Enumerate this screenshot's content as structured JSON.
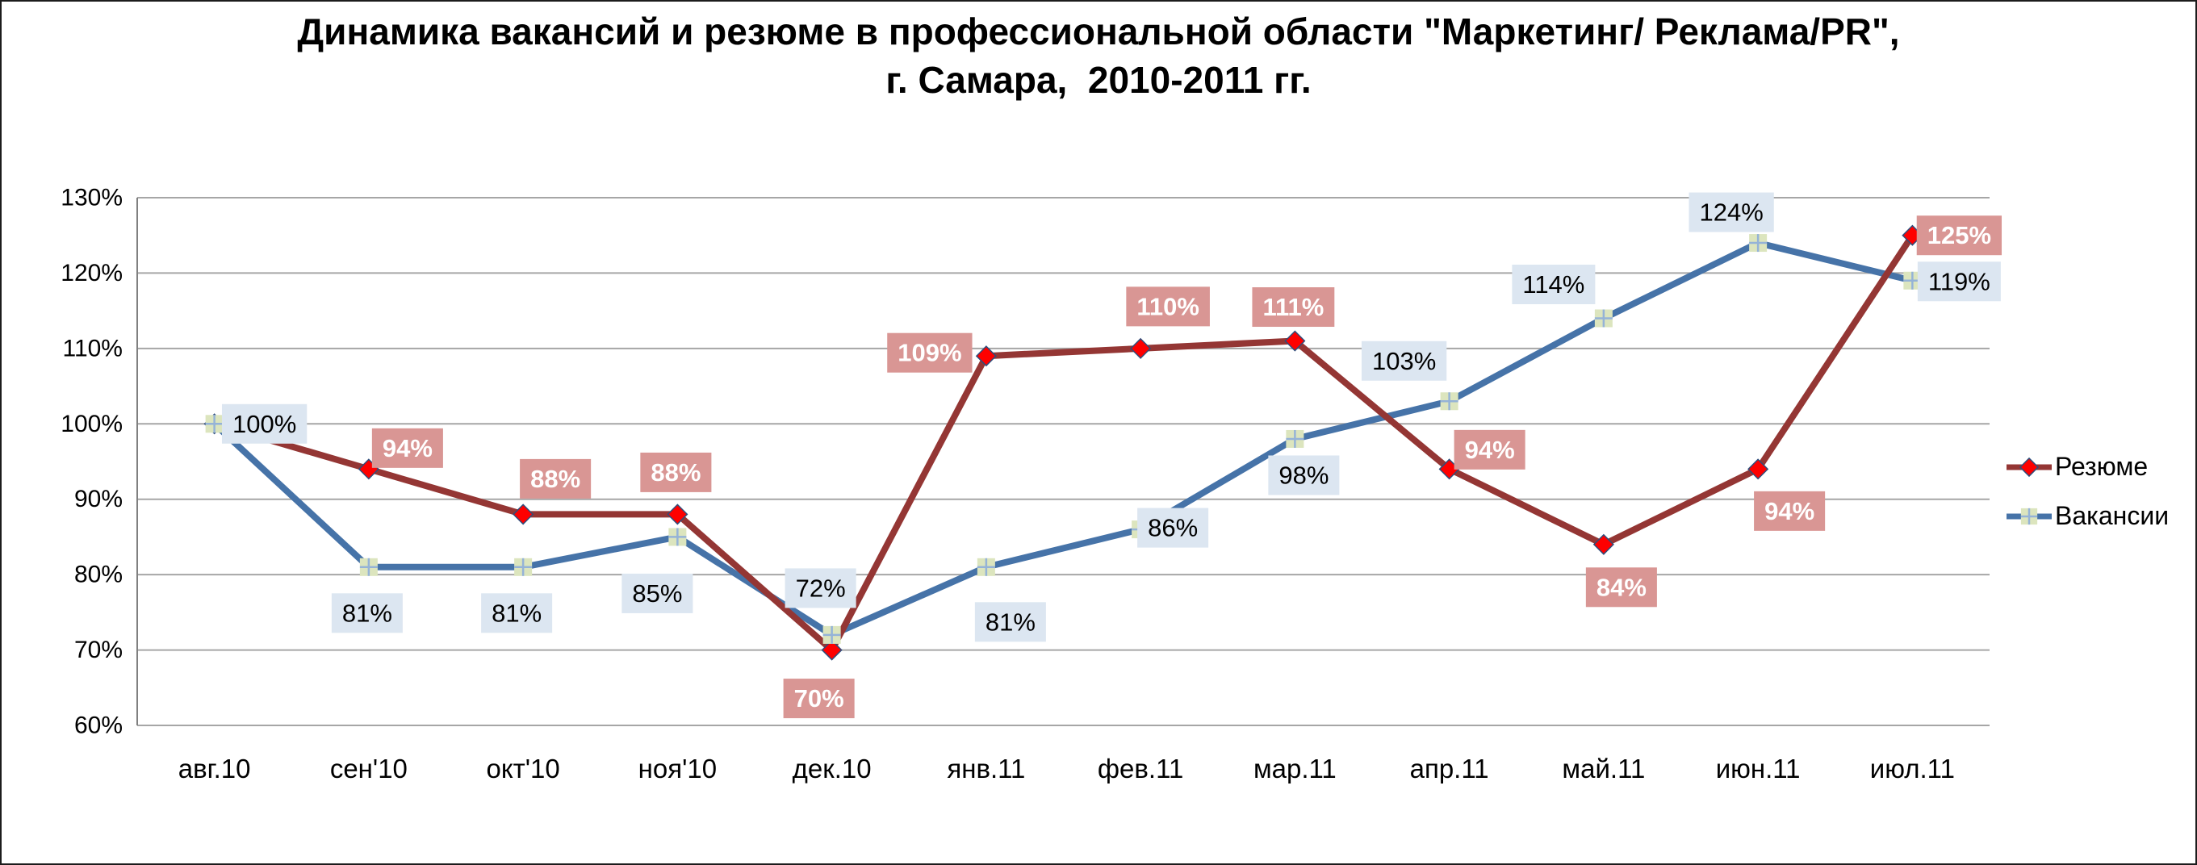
{
  "title": {
    "line1": "Динамика вакансий и резюме в профессиональной области \"Маркетинг/ Реклама/PR\",",
    "line2": "г. Самара,  2010-2011 гг."
  },
  "chart_data": {
    "type": "line",
    "categories": [
      "авг.10",
      "сен'10",
      "окт'10",
      "ноя'10",
      "дек.10",
      "янв.11",
      "фев.11",
      "мар.11",
      "апр.11",
      "май.11",
      "июн.11",
      "июл.11"
    ],
    "y_axis": {
      "min": 60,
      "max": 130,
      "step": 10,
      "tick_labels": [
        "60%",
        "70%",
        "80%",
        "90%",
        "100%",
        "110%",
        "120%",
        "130%"
      ]
    },
    "grid": true,
    "legend_position": "right",
    "colors": {
      "gridline": "#A6A6A6",
      "axis": "#808080",
      "background": "#FFFFFF"
    },
    "series": [
      {
        "name": "Резюме",
        "color": "#943634",
        "marker": "diamond",
        "marker_fill": "#FE0000",
        "marker_stroke": "#2E4D7B",
        "label_bg": "#D99694",
        "label_text_color": "#FFFFFF",
        "values": [
          100,
          94,
          88,
          88,
          70,
          109,
          110,
          111,
          94,
          84,
          94,
          125
        ],
        "labels": [
          "100%",
          "94%",
          "88%",
          "88%",
          "70%",
          "109%",
          "110%",
          "111%",
          "94%",
          "84%",
          "94%",
          "125%"
        ],
        "label_visible": [
          false,
          true,
          true,
          true,
          true,
          true,
          true,
          true,
          true,
          true,
          true,
          true
        ],
        "label_offsets": [
          [
            0,
            0
          ],
          [
            48,
            -26
          ],
          [
            40,
            -44
          ],
          [
            -2,
            -52
          ],
          [
            -16,
            60
          ],
          [
            -70,
            -4
          ],
          [
            34,
            -52
          ],
          [
            -2,
            -42
          ],
          [
            50,
            -24
          ],
          [
            22,
            53
          ],
          [
            39,
            52
          ],
          [
            58,
            0
          ]
        ]
      },
      {
        "name": "Вакансии",
        "color": "#4673A8",
        "marker": "square-plus",
        "marker_fill": "#DCE5BE",
        "marker_stroke": "#95B3D7",
        "label_bg": "#DCE6F1",
        "label_text_color": "#000000",
        "values": [
          100,
          81,
          81,
          85,
          72,
          81,
          86,
          98,
          103,
          114,
          124,
          119
        ],
        "labels": [
          "100%",
          "81%",
          "81%",
          "85%",
          "72%",
          "81%",
          "86%",
          "98%",
          "103%",
          "114%",
          "124%",
          "119%"
        ],
        "label_visible": [
          true,
          true,
          true,
          true,
          true,
          true,
          true,
          true,
          true,
          true,
          true,
          true
        ],
        "label_offsets": [
          [
            62,
            0
          ],
          [
            -2,
            57
          ],
          [
            -8,
            57
          ],
          [
            -25,
            70
          ],
          [
            -14,
            -58
          ],
          [
            30,
            68
          ],
          [
            40,
            -2
          ],
          [
            11,
            45
          ],
          [
            -56,
            -50
          ],
          [
            -62,
            -42
          ],
          [
            -33,
            -38
          ],
          [
            58,
            1
          ]
        ]
      }
    ]
  },
  "legend": {
    "items": [
      "Резюме",
      "Вакансии"
    ]
  }
}
